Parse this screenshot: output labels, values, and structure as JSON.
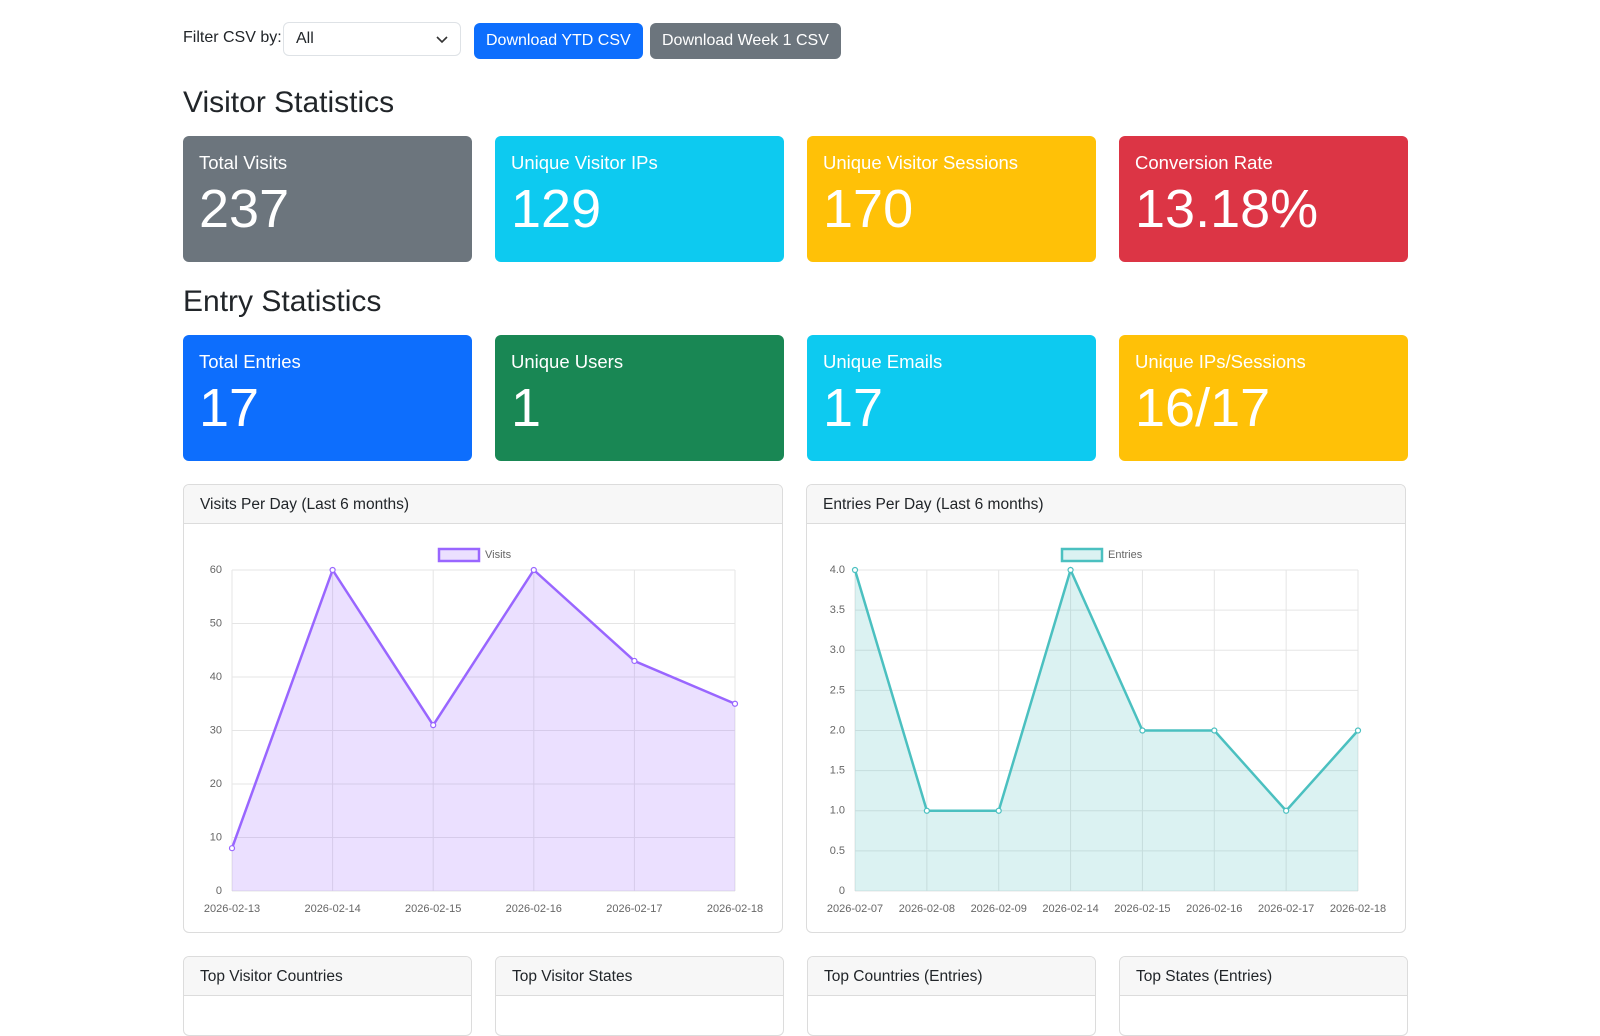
{
  "filter": {
    "label": "Filter CSV by:",
    "selected": "All"
  },
  "buttons": [
    "Download YTD CSV",
    "Download Week 1 CSV"
  ],
  "visitor_section": {
    "title": "Visitor Statistics",
    "cards": [
      {
        "label": "Total Visits",
        "value": "237"
      },
      {
        "label": "Unique Visitor IPs",
        "value": "129"
      },
      {
        "label": "Unique Visitor Sessions",
        "value": "170"
      },
      {
        "label": "Conversion Rate",
        "value": "13.18%"
      }
    ]
  },
  "entry_section": {
    "title": "Entry Statistics",
    "cards": [
      {
        "label": "Total Entries",
        "value": "17"
      },
      {
        "label": "Unique Users",
        "value": "1"
      },
      {
        "label": "Unique Emails",
        "value": "17"
      },
      {
        "label": "Unique IPs/Sessions",
        "value": "16/17"
      }
    ]
  },
  "charts": [
    {
      "type": "line",
      "title": "Visits Per Day (Last 6 months)",
      "categories": [
        "2026-02-13",
        "2026-02-14",
        "2026-02-15",
        "2026-02-16",
        "2026-02-17",
        "2026-02-18"
      ],
      "series": [
        {
          "name": "Visits",
          "color": "#9966ff",
          "values": [
            8,
            60,
            31,
            60,
            43,
            35
          ]
        }
      ],
      "ylim": [
        0,
        60
      ],
      "yticks": [
        0,
        10,
        20,
        30,
        40,
        50,
        60
      ],
      "grid": true
    },
    {
      "type": "line",
      "title": "Entries Per Day (Last 6 months)",
      "categories": [
        "2026-02-07",
        "2026-02-08",
        "2026-02-09",
        "2026-02-14",
        "2026-02-15",
        "2026-02-16",
        "2026-02-17",
        "2026-02-18"
      ],
      "series": [
        {
          "name": "Entries",
          "color": "#4bc0c0",
          "values": [
            4,
            1,
            1,
            4,
            2,
            2,
            1,
            2
          ]
        }
      ],
      "ylim": [
        0,
        4
      ],
      "yticks": [
        0,
        0.5,
        {
          "value": 1,
          "label": "1.0"
        },
        1.5,
        {
          "value": 2,
          "label": "2.0"
        },
        2.5,
        {
          "value": 3,
          "label": "3.0"
        },
        3.5,
        {
          "value": 4,
          "label": "4.0"
        }
      ],
      "grid": true
    }
  ],
  "bottom_panels": [
    "Top Visitor Countries",
    "Top Visitor States",
    "Top Countries (Entries)",
    "Top States (Entries)"
  ]
}
